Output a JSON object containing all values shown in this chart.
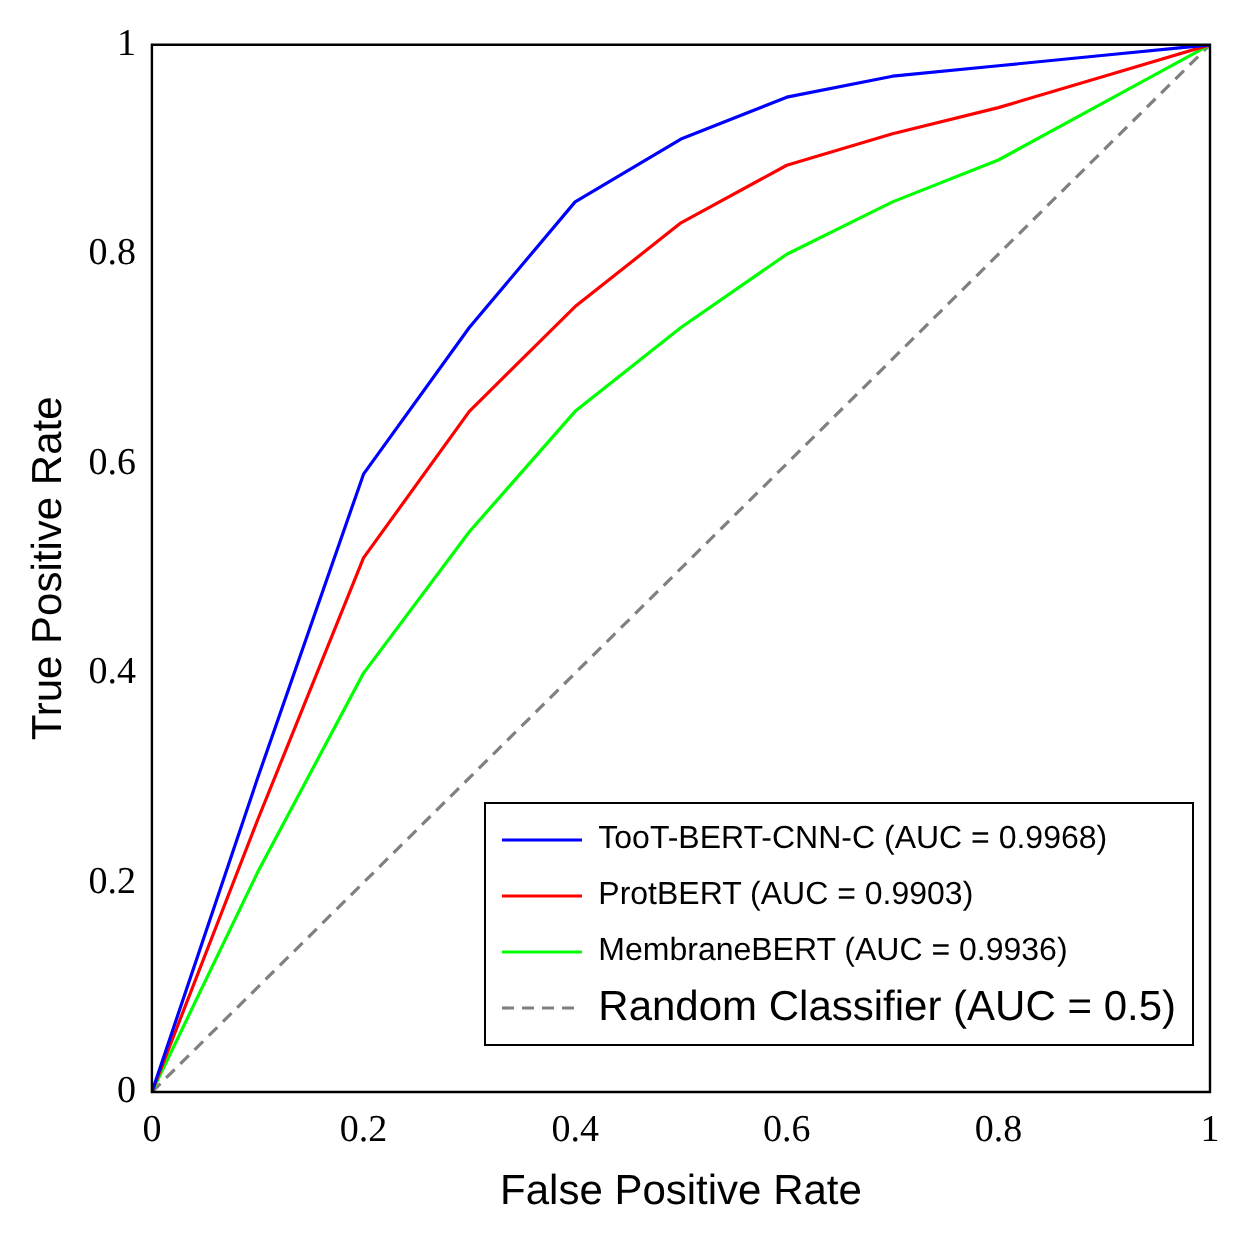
{
  "chart_data": {
    "type": "line",
    "xlabel": "False Positive Rate",
    "ylabel": "True Positive Rate",
    "xlim": [
      0,
      1
    ],
    "ylim": [
      0,
      1
    ],
    "xticks": [
      0,
      0.2,
      0.4,
      0.6,
      0.8,
      1
    ],
    "yticks": [
      0,
      0.2,
      0.4,
      0.6,
      0.8,
      1
    ],
    "grid": false,
    "legend": "bottom right",
    "marker": "none",
    "line_style": "solid",
    "x": [
      0,
      0.1,
      0.2,
      0.3,
      0.4,
      0.5,
      0.6,
      0.7,
      0.8,
      0.9,
      1
    ],
    "series": [
      {
        "name": "TooT-BERT-CNN-C (AUC = 0.9968)",
        "color": "#0000ff",
        "values": [
          0,
          0.3,
          0.59,
          0.73,
          0.85,
          0.91,
          0.95,
          0.97,
          0.98,
          0.99,
          1
        ]
      },
      {
        "name": "ProtBERT (AUC = 0.9903)",
        "color": "#ff0000",
        "values": [
          0,
          0.26,
          0.51,
          0.65,
          0.75,
          0.83,
          0.885,
          0.915,
          0.94,
          0.97,
          1
        ]
      },
      {
        "name": "MembraneBERT (AUC = 0.9936)",
        "color": "#00ff00",
        "values": [
          0,
          0.21,
          0.4,
          0.535,
          0.65,
          0.73,
          0.8,
          0.85,
          0.89,
          0.945,
          1
        ]
      },
      {
        "name": "Random Classifier (AUC = 0.5)",
        "color": "#808080",
        "x": [
          0,
          1
        ],
        "values": [
          0,
          1
        ],
        "line_style": "dashed"
      }
    ]
  }
}
